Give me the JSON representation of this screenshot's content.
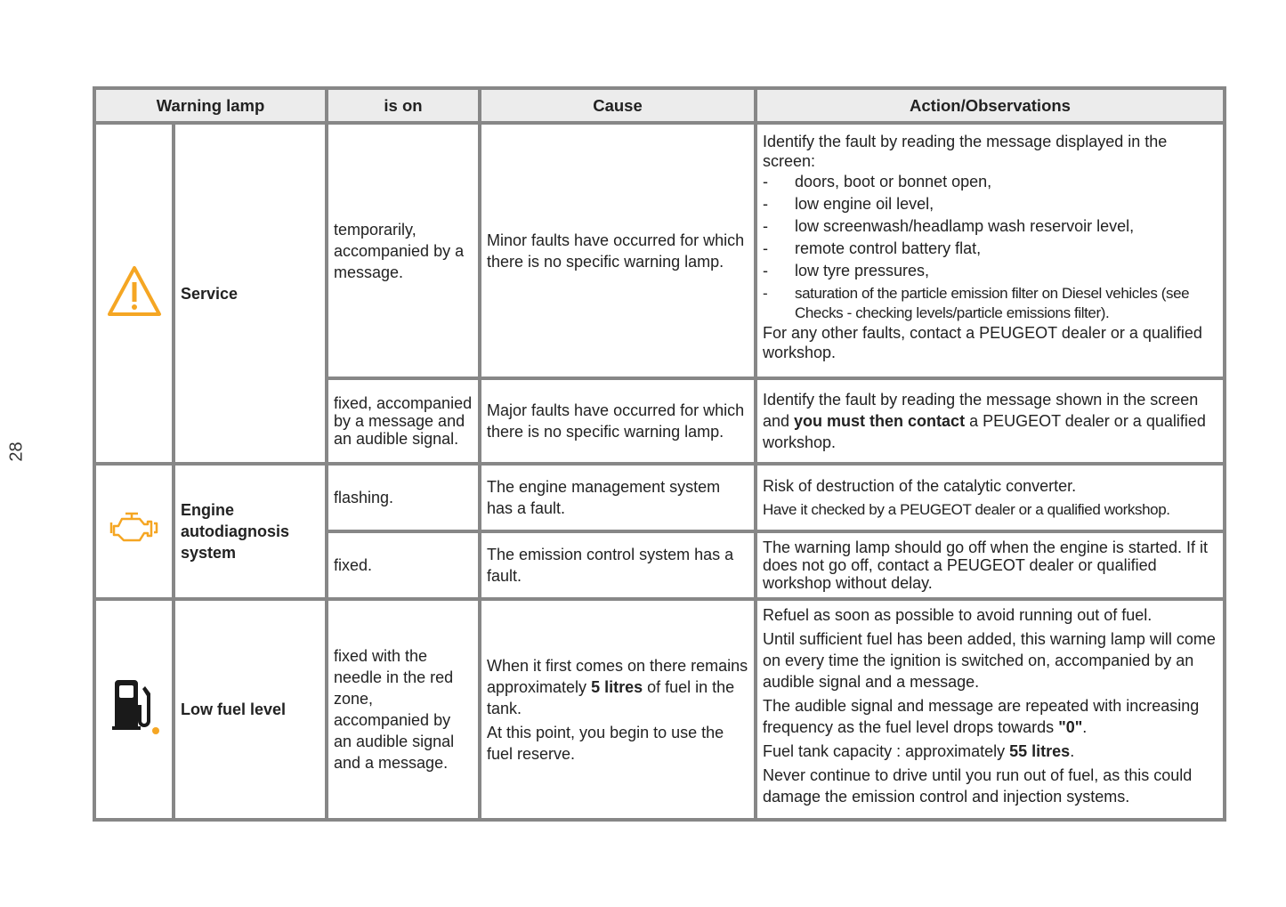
{
  "page_number": "28",
  "headers": [
    "Warning lamp",
    "is on",
    "Cause",
    "Action/Observations"
  ],
  "colors": {
    "border": "#878787",
    "header_bg": "#ececec",
    "warning_amber": "#f5a623"
  },
  "service": {
    "icon": "warning-triangle-icon",
    "label": "Service",
    "row1": {
      "is_on": "temporarily, accompanied by a message.",
      "cause": "Minor faults have occurred for which there is no specific warning lamp.",
      "action_intro": "Identify the fault by reading the message displayed in the screen:",
      "bullets": [
        "doors, boot or bonnet open,",
        "low engine oil level,",
        "low screenwash/headlamp wash reservoir level,",
        "remote control battery flat,",
        "low tyre pressures,",
        "saturation of the particle emission filter on Diesel vehicles (see Checks - checking levels/particle emissions filter)."
      ],
      "bullet_marker": "-",
      "action_outro": "For any other faults, contact a PEUGEOT dealer or a qualified workshop."
    },
    "row2": {
      "is_on": "fixed, accompanied by a message and an audible signal.",
      "cause": "Major faults have occurred for which there is no specific warning lamp.",
      "action_a": "Identify the fault by reading the message shown in the screen and ",
      "action_bold": "you must then contact",
      "action_b": " a PEUGEOT dealer or a qualified workshop."
    }
  },
  "engine": {
    "icon": "engine-icon",
    "label": "Engine autodiagnosis system",
    "row1": {
      "is_on": "flashing.",
      "cause": "The engine management system has a fault.",
      "action_1": "Risk of destruction of the catalytic converter.",
      "action_2": "Have it checked by a PEUGEOT dealer or a qualified workshop."
    },
    "row2": {
      "is_on": "fixed.",
      "cause": "The emission control system has a fault.",
      "action": "The warning lamp should go off when the engine is started. If it does not go off, contact a PEUGEOT dealer or qualified workshop without delay."
    }
  },
  "fuel": {
    "icon": "fuel-pump-icon",
    "label": "Low fuel level",
    "is_on": "fixed with the needle in the red zone, accompanied by an audible signal and a message.",
    "cause_a": "When it first comes on there remains approximately ",
    "cause_bold": "5 litres",
    "cause_b": " of fuel in the tank.",
    "cause_2": "At this point, you begin to use the fuel reserve.",
    "action_1": "Refuel as soon as possible to avoid running out of fuel.",
    "action_2": "Until sufficient fuel has been added, this warning lamp will come on every time the ignition is switched on, accompanied by an audible signal and a message.",
    "action_3a": "The audible signal and message are repeated with increasing frequency as the fuel level drops towards ",
    "action_3bold": "\"0\"",
    "action_3b": ".",
    "action_4a": "Fuel tank capacity : approximately ",
    "action_4bold": "55 litres",
    "action_4b": ".",
    "action_5": "Never continue to drive until you run out of fuel, as this could damage the emission control and injection systems."
  }
}
